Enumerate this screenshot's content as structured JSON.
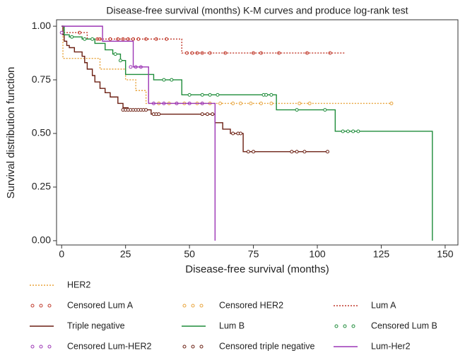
{
  "chart_data": {
    "type": "km",
    "title": "Disease-free survival (months) K-M curves and produce log-rank test",
    "xlabel": "Disease-free survival (months)",
    "ylabel": "Survival distribution function",
    "xlim": [
      -2,
      155
    ],
    "ylim": [
      -0.02,
      1.03
    ],
    "xticks": [
      0,
      25,
      50,
      75,
      100,
      125,
      150
    ],
    "yticks": [
      {
        "value": 0,
        "label": "0.00"
      },
      {
        "value": 0.25,
        "label": "0.25"
      },
      {
        "value": 0.5,
        "label": "0.50"
      },
      {
        "value": 0.75,
        "label": "0.75"
      },
      {
        "value": 1,
        "label": "1.00"
      }
    ],
    "series": [
      {
        "name": "HER2",
        "kind": "step",
        "style": "dotted",
        "color": "#e8a33a",
        "x": [
          0,
          0.5,
          15,
          25,
          29,
          33,
          129
        ],
        "values": [
          1,
          0.85,
          0.8,
          0.75,
          0.7,
          0.64,
          0.64
        ]
      },
      {
        "name": "Censored Lum A",
        "kind": "censored",
        "color": "#c0392b",
        "x": [
          7,
          14,
          15,
          19,
          22,
          24,
          26,
          28,
          30,
          33,
          37,
          41,
          49,
          51,
          53,
          55,
          58,
          64,
          75,
          78,
          85,
          96,
          105
        ],
        "values": [
          0.97,
          0.94,
          0.94,
          0.94,
          0.94,
          0.94,
          0.94,
          0.94,
          0.94,
          0.94,
          0.94,
          0.94,
          0.875,
          0.875,
          0.875,
          0.875,
          0.875,
          0.875,
          0.875,
          0.875,
          0.875,
          0.875,
          0.875
        ]
      },
      {
        "name": "Censored HER2",
        "kind": "censored",
        "color": "#e8a33a",
        "x": [
          38,
          42,
          45,
          48,
          53,
          55,
          58,
          62,
          67,
          70,
          74,
          78,
          82,
          93,
          97,
          129
        ],
        "values": [
          0.64,
          0.64,
          0.64,
          0.64,
          0.64,
          0.64,
          0.64,
          0.64,
          0.64,
          0.64,
          0.64,
          0.64,
          0.64,
          0.64,
          0.64,
          0.64
        ]
      },
      {
        "name": "Lum A",
        "kind": "step",
        "style": "dotted",
        "color": "#c0392b",
        "x": [
          0,
          1,
          10,
          47,
          111
        ],
        "values": [
          1,
          0.97,
          0.94,
          0.875,
          0.875
        ]
      },
      {
        "name": "Triple negative",
        "kind": "step",
        "style": "solid",
        "color": "#6b1f12",
        "x": [
          0,
          0.5,
          1,
          2,
          3,
          5,
          8,
          9,
          10,
          12,
          13,
          15,
          17,
          19,
          22,
          24,
          26,
          35,
          60,
          63,
          66,
          71,
          104
        ],
        "values": [
          1,
          0.96,
          0.93,
          0.91,
          0.9,
          0.88,
          0.86,
          0.83,
          0.8,
          0.77,
          0.74,
          0.71,
          0.69,
          0.67,
          0.64,
          0.62,
          0.61,
          0.59,
          0.55,
          0.52,
          0.5,
          0.415,
          0.415
        ]
      },
      {
        "name": "Lum B",
        "kind": "step",
        "style": "solid",
        "color": "#1e8c3a",
        "x": [
          0,
          1,
          3,
          8,
          13,
          17,
          20,
          23,
          25,
          36,
          47,
          84,
          107,
          145,
          145
        ],
        "values": [
          1,
          0.96,
          0.95,
          0.94,
          0.92,
          0.89,
          0.87,
          0.84,
          0.775,
          0.75,
          0.68,
          0.61,
          0.51,
          0.51,
          0
        ]
      },
      {
        "name": "Censored Lum B",
        "kind": "censored",
        "color": "#1e8c3a",
        "x": [
          4,
          9,
          12,
          21,
          23,
          40,
          43,
          50,
          55,
          58,
          61,
          79,
          80,
          82,
          92,
          103,
          110,
          112,
          114,
          116
        ],
        "values": [
          0.95,
          0.94,
          0.94,
          0.87,
          0.84,
          0.75,
          0.75,
          0.68,
          0.68,
          0.68,
          0.68,
          0.68,
          0.68,
          0.68,
          0.61,
          0.61,
          0.51,
          0.51,
          0.51,
          0.51
        ]
      },
      {
        "name": "Censored Lum-HER2",
        "kind": "censored",
        "color": "#9c36b5",
        "x": [
          0,
          27,
          29,
          31,
          36,
          40,
          45,
          50,
          55
        ],
        "values": [
          0.97,
          0.81,
          0.81,
          0.81,
          0.64,
          0.64,
          0.64,
          0.64,
          0.64
        ]
      },
      {
        "name": "Censored triple negative",
        "kind": "censored",
        "color": "#6b1f12",
        "x": [
          24,
          25,
          26,
          27,
          28,
          29,
          30,
          31,
          32,
          33,
          36,
          37,
          38,
          55,
          57,
          59,
          67,
          69,
          70,
          73,
          75,
          90,
          92,
          95,
          104
        ],
        "values": [
          0.61,
          0.61,
          0.61,
          0.61,
          0.61,
          0.61,
          0.61,
          0.61,
          0.61,
          0.61,
          0.59,
          0.59,
          0.59,
          0.59,
          0.59,
          0.59,
          0.5,
          0.5,
          0.5,
          0.415,
          0.415,
          0.415,
          0.415,
          0.415,
          0.415
        ]
      },
      {
        "name": "Lum-Her2",
        "kind": "step",
        "style": "solid",
        "color": "#9c36b5",
        "x": [
          0,
          16,
          28,
          34,
          60,
          60
        ],
        "values": [
          1,
          0.93,
          0.81,
          0.64,
          0.64,
          0
        ]
      }
    ]
  }
}
